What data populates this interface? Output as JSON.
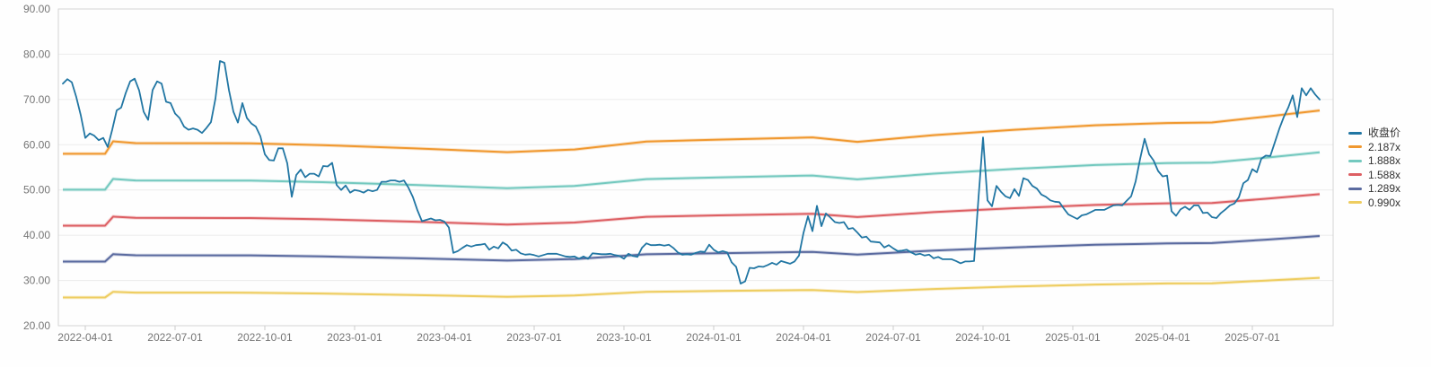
{
  "chart_data": {
    "type": "line",
    "title": "",
    "grid": "horizontal-only",
    "legend_position": "right-middle",
    "y_axis": {
      "min": 20,
      "max": 90,
      "tick_values": [
        90,
        80,
        70,
        60,
        50,
        40,
        30,
        20
      ],
      "tick_labels": [
        "90.00",
        "80.00",
        "70.00",
        "60.00",
        "50.00",
        "40.00",
        "30.00",
        "20.00"
      ]
    },
    "x_axis": {
      "range_decimal_year": [
        2022.175,
        2025.725
      ],
      "tick_values_decimal_year": [
        2022.25,
        2022.5,
        2022.75,
        2023.0,
        2023.25,
        2023.5,
        2023.75,
        2024.0,
        2024.25,
        2024.5,
        2024.75,
        2025.0,
        2025.25,
        2025.5
      ],
      "tick_labels": [
        "2022-04-01",
        "2022-07-01",
        "2022-10-01",
        "2023-01-01",
        "2023-04-01",
        "2023-07-01",
        "2023-10-01",
        "2024-01-01",
        "2024-04-01",
        "2024-07-01",
        "2024-10-01",
        "2025-01-01",
        "2025-04-01",
        "2025-07-01"
      ]
    },
    "legend": [
      {
        "label": "收盘价",
        "color": "#2176a3"
      },
      {
        "label": "2.187x",
        "color": "#f0982f"
      },
      {
        "label": "1.888x",
        "color": "#74c9bf"
      },
      {
        "label": "1.588x",
        "color": "#dd5f63"
      },
      {
        "label": "1.289x",
        "color": "#5b6ba0"
      },
      {
        "label": "0.990x",
        "color": "#eecd60"
      }
    ],
    "close_series": {
      "name": "收盘价",
      "color": "#2176a3",
      "t_start": 2022.1875,
      "t_step": 0.0125,
      "values": [
        73.5,
        74.5,
        73.8,
        70.5,
        66.5,
        61.5,
        62.5,
        62.0,
        61.0,
        61.5,
        59.5,
        63.3,
        67.6,
        68.2,
        71.4,
        74.0,
        74.6,
        72.0,
        67.3,
        65.5,
        72.1,
        74.0,
        73.5,
        69.5,
        69.2,
        66.9,
        65.9,
        64.0,
        63.3,
        63.6,
        63.3,
        62.6,
        63.7,
        65.0,
        70.2,
        78.5,
        78.1,
        72.1,
        67.3,
        64.9,
        69.2,
        65.9,
        64.7,
        64.0,
        61.9,
        57.9,
        56.6,
        56.5,
        59.2,
        59.2,
        55.9,
        48.5,
        53.3,
        54.5,
        52.8,
        53.6,
        53.6,
        53.0,
        55.3,
        55.2,
        56.0,
        51.1,
        50.0,
        51.0,
        49.4,
        50.0,
        49.8,
        49.4,
        50.0,
        49.7,
        50.0,
        51.8,
        51.8,
        52.1,
        52.1,
        51.8,
        52.1,
        50.5,
        48.4,
        45.5,
        43.1,
        43.4,
        43.7,
        43.3,
        43.4,
        43.0,
        41.7,
        36.1,
        36.5,
        37.2,
        37.8,
        37.5,
        37.8,
        37.9,
        38.1,
        36.8,
        37.5,
        37.1,
        38.4,
        37.8,
        36.6,
        36.8,
        36.0,
        35.7,
        35.8,
        35.6,
        35.3,
        35.6,
        35.9,
        35.9,
        35.9,
        35.6,
        35.3,
        35.2,
        35.3,
        34.8,
        35.3,
        34.8,
        36.0,
        35.9,
        35.8,
        35.8,
        35.9,
        35.6,
        35.4,
        34.8,
        35.9,
        35.4,
        35.2,
        37.2,
        38.2,
        37.8,
        37.8,
        37.9,
        37.7,
        37.9,
        37.2,
        36.2,
        35.7,
        35.8,
        35.7,
        36.1,
        36.4,
        36.3,
        37.9,
        36.8,
        36.2,
        36.5,
        36.2,
        34.0,
        33.0,
        29.3,
        29.8,
        32.8,
        32.7,
        33.1,
        33.0,
        33.4,
        33.9,
        33.5,
        34.3,
        34.0,
        33.7,
        34.2,
        35.5,
        40.5,
        44.2,
        40.9,
        46.5,
        42.0,
        44.8,
        43.9,
        42.9,
        42.7,
        42.9,
        41.4,
        41.6,
        40.6,
        39.5,
        39.7,
        38.6,
        38.5,
        38.4,
        37.3,
        37.8,
        37.1,
        36.5,
        36.6,
        36.8,
        36.2,
        35.7,
        35.9,
        35.5,
        35.7,
        34.9,
        35.2,
        34.7,
        34.7,
        34.7,
        34.3,
        33.8,
        34.2,
        34.2,
        34.3,
        48.4,
        61.6,
        47.7,
        46.4,
        50.9,
        49.6,
        48.6,
        48.2,
        50.2,
        48.7,
        52.6,
        52.2,
        50.9,
        50.3,
        49.0,
        48.5,
        47.7,
        47.4,
        47.3,
        45.9,
        44.6,
        44.1,
        43.6,
        44.4,
        44.6,
        45.1,
        45.6,
        45.6,
        45.6,
        46.1,
        46.6,
        46.7,
        46.6,
        47.6,
        48.6,
        51.9,
        56.9,
        61.3,
        57.9,
        56.5,
        54.2,
        53.0,
        53.2,
        45.3,
        44.3,
        45.7,
        46.3,
        45.6,
        46.6,
        46.6,
        44.9,
        45.0,
        44.0,
        43.8,
        44.9,
        45.7,
        46.6,
        47.0,
        48.4,
        51.5,
        52.2,
        54.6,
        53.9,
        56.9,
        57.6,
        57.5,
        60.5,
        63.5,
        66.1,
        68.2,
        70.9,
        66.1,
        72.5,
        70.9,
        72.5,
        71.1,
        70.0
      ]
    },
    "valuation_bands": {
      "base_t": [
        2022.1875,
        2022.305,
        2022.3275,
        2022.39,
        2022.71,
        2022.91,
        2023.16,
        2023.425,
        2023.6125,
        2023.8125,
        2024.0125,
        2024.275,
        2024.4,
        2024.6125,
        2024.8375,
        2025.0625,
        2025.2625,
        2025.3875,
        2025.5375,
        2025.6875
      ],
      "base_values": [
        26.52,
        26.52,
        27.78,
        27.6,
        27.58,
        27.4,
        27.08,
        26.68,
        26.95,
        27.76,
        27.95,
        28.18,
        27.72,
        28.4,
        28.95,
        29.4,
        29.63,
        29.68,
        30.27,
        30.9
      ],
      "bands": [
        {
          "name": "2.187x",
          "multiple": 2.187,
          "color": "#f0982f"
        },
        {
          "name": "1.888x",
          "multiple": 1.888,
          "color": "#74c9bf"
        },
        {
          "name": "1.588x",
          "multiple": 1.588,
          "color": "#dd5f63"
        },
        {
          "name": "1.289x",
          "multiple": 1.289,
          "color": "#5b6ba0"
        },
        {
          "name": "0.990x",
          "multiple": 0.99,
          "color": "#eecd60"
        }
      ]
    },
    "style_colors": {
      "plot_border": "#d4d4d4",
      "gridline": "#ececec",
      "axis_line": "#cccccc",
      "axis_text": "#757575",
      "legend_text": "#333333",
      "background": "#fefefe"
    }
  }
}
